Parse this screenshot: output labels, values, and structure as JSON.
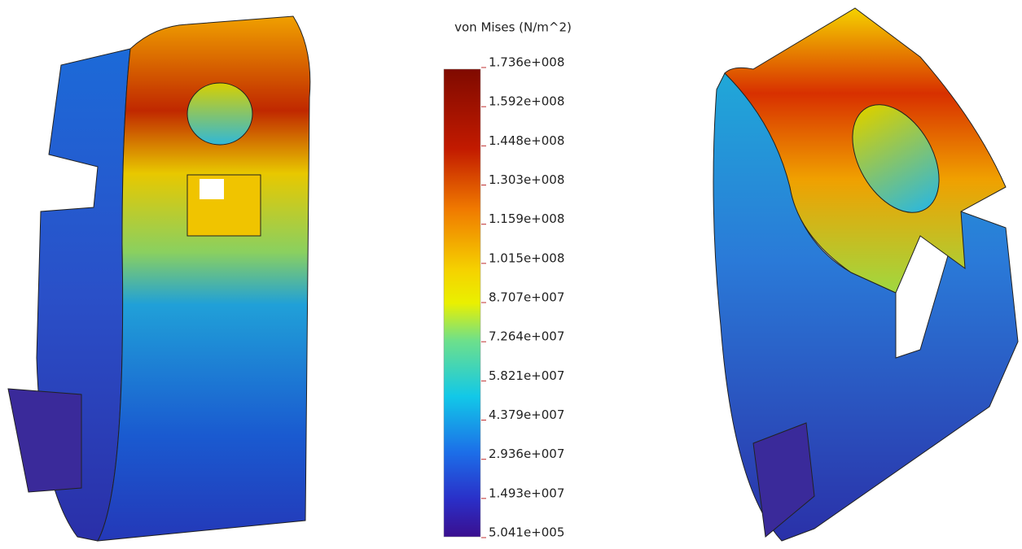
{
  "legend": {
    "title": "von Mises (N/m^2)",
    "labels": [
      "1.736e+008",
      "1.592e+008",
      "1.448e+008",
      "1.303e+008",
      "1.159e+008",
      "1.015e+008",
      "8.707e+007",
      "7.264e+007",
      "5.821e+007",
      "4.379e+007",
      "2.936e+007",
      "1.493e+007",
      "5.041e+005"
    ]
  }
}
